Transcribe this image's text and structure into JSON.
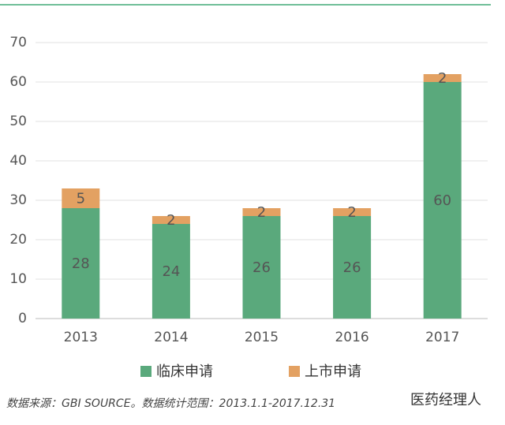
{
  "chart_data": {
    "type": "stacked_bar",
    "categories": [
      "2013",
      "2014",
      "2015",
      "2016",
      "2017"
    ],
    "series": [
      {
        "name": "临床申请",
        "color": "#5aa97c",
        "values": [
          28,
          24,
          26,
          26,
          60
        ]
      },
      {
        "name": "上市申请",
        "color": "#e3a162",
        "values": [
          5,
          2,
          2,
          2,
          2
        ]
      }
    ],
    "ylim": [
      0,
      70
    ],
    "yticks": [
      0,
      10,
      20,
      30,
      40,
      50,
      60,
      70
    ],
    "grid": true,
    "legend": "bottom",
    "source": "数据来源：GBI SOURCE。数据统计范围：2013.1.1-2017.12.31",
    "watermark": "医药经理人"
  }
}
